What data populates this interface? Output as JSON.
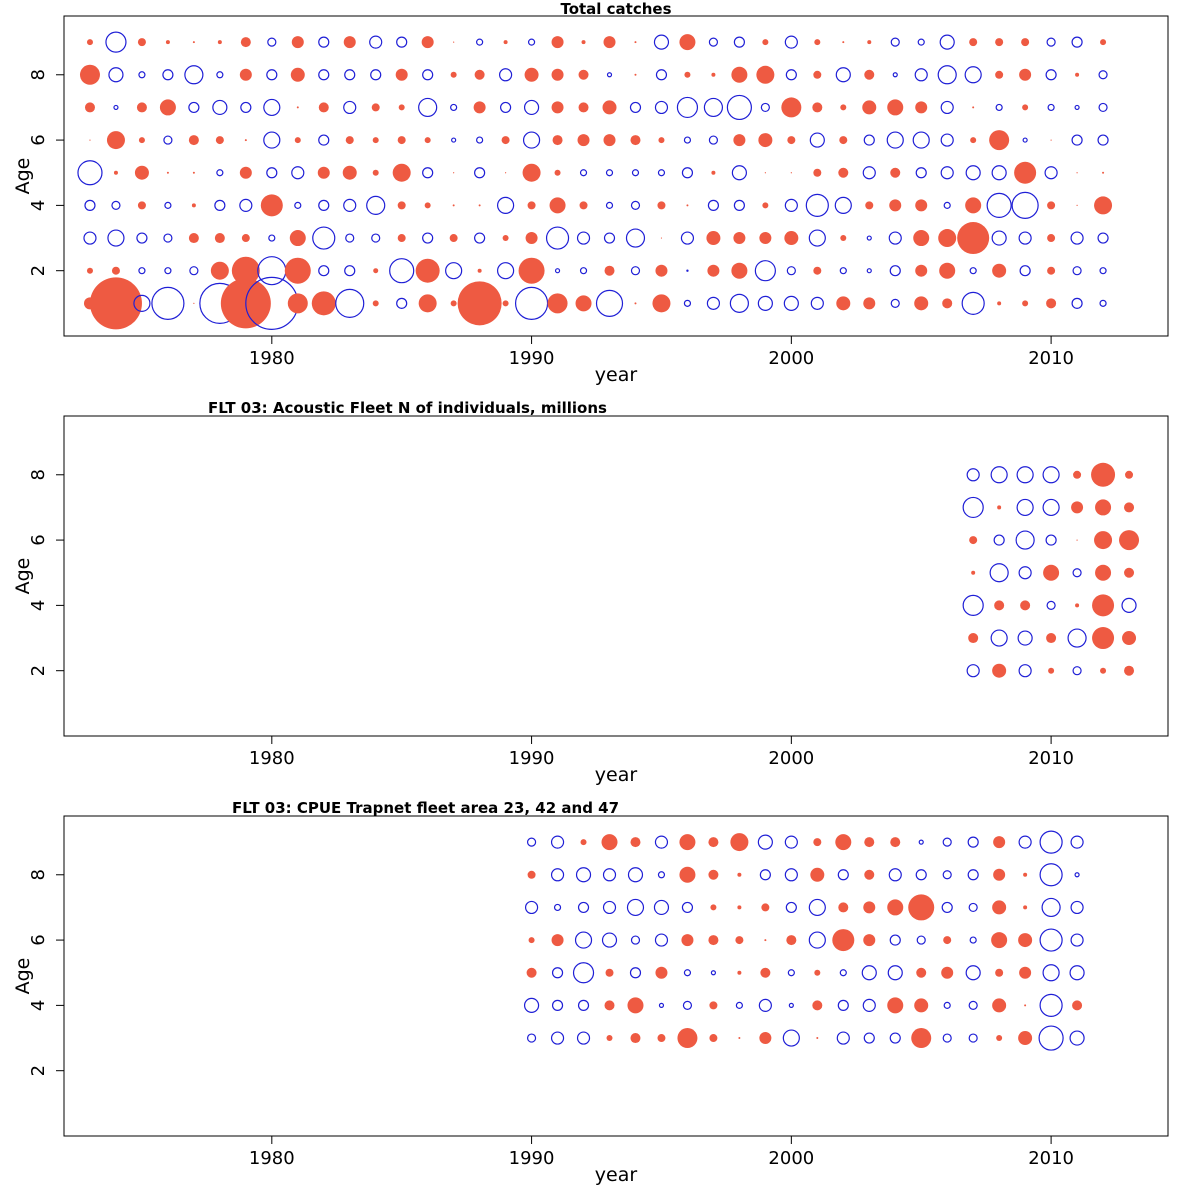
{
  "figure": {
    "colors": {
      "positive": "#EE5A42",
      "negative": "#1F1FD6"
    }
  },
  "chart_data": [
    {
      "type": "scatter",
      "subtype": "bubble-residuals",
      "title": "Total catches",
      "xlabel": "year",
      "ylabel": "Age",
      "xlim": [
        1972,
        2014.5
      ],
      "ylim": [
        0,
        9.8
      ],
      "xticks": [
        1980,
        1990,
        2000,
        2010
      ],
      "yticks": [
        2,
        4,
        6,
        8
      ],
      "x_start": 1973,
      "ages": [
        1,
        2,
        3,
        4,
        5,
        6,
        7,
        8,
        9
      ],
      "residuals": [
        [
          0.6,
          2.6,
          -0.8,
          -1.6,
          0.05,
          -2.0,
          2.5,
          -2.6,
          1.0,
          1.2,
          -1.4,
          0.3,
          -0.5,
          0.9,
          0.3,
          2.2,
          0.3,
          -1.6,
          1.0,
          0.8,
          -1.3,
          0.1,
          0.9,
          -0.3,
          -0.6,
          -0.9,
          -0.7,
          -0.7,
          -0.6,
          0.7,
          0.6,
          -0.4,
          0.7,
          0.5,
          -1.1,
          0.2,
          0.3,
          0.5,
          -0.5,
          -0.3
        ],
        [
          0.3,
          0.4,
          -0.3,
          -0.3,
          -0.4,
          0.9,
          1.4,
          -1.4,
          1.3,
          -0.5,
          -0.5,
          0.25,
          -1.2,
          1.2,
          -0.8,
          0.2,
          -0.8,
          1.3,
          -0.2,
          -0.3,
          0.5,
          -0.4,
          0.6,
          -0.05,
          0.6,
          0.8,
          -1.0,
          -0.4,
          0.4,
          -0.3,
          -0.2,
          -0.5,
          0.6,
          0.8,
          -0.3,
          0.7,
          -0.5,
          0.4,
          -0.4,
          -0.3
        ],
        [
          -0.6,
          -0.8,
          -0.5,
          -0.4,
          0.5,
          0.5,
          0.4,
          -0.3,
          0.8,
          -1.1,
          -0.4,
          -0.4,
          0.4,
          -0.5,
          0.4,
          -0.5,
          0.3,
          0.6,
          -1.1,
          -0.6,
          -0.5,
          -0.9,
          0.05,
          -0.6,
          0.7,
          0.6,
          0.6,
          0.7,
          -0.8,
          0.3,
          -0.2,
          -0.6,
          0.8,
          0.9,
          1.6,
          -0.7,
          -0.6,
          0.4,
          -0.6,
          -0.5
        ],
        [
          -0.5,
          -0.4,
          0.4,
          -0.3,
          0.2,
          -0.5,
          -0.6,
          1.1,
          -0.3,
          -0.5,
          -0.6,
          -0.9,
          0.4,
          0.3,
          0.1,
          0.1,
          -0.8,
          0.4,
          0.8,
          0.4,
          -0.3,
          -0.4,
          0.4,
          0.1,
          -0.5,
          -0.5,
          0.3,
          -0.6,
          -1.1,
          -0.8,
          0.4,
          0.6,
          0.6,
          -0.3,
          0.8,
          -1.2,
          -1.3,
          0.4,
          0.05,
          0.9
        ],
        [
          -1.2,
          0.2,
          0.7,
          0.1,
          0.1,
          -0.3,
          0.6,
          -0.5,
          -0.6,
          0.6,
          0.7,
          0.3,
          0.9,
          -0.5,
          0.05,
          -0.5,
          0.05,
          0.9,
          0.3,
          -0.3,
          -0.3,
          -0.3,
          -0.3,
          -0.5,
          0.2,
          -0.7,
          0.05,
          0.05,
          0.4,
          0.5,
          -0.6,
          0.5,
          -0.5,
          -0.6,
          -0.7,
          -0.7,
          1.1,
          -0.6,
          0.05,
          0.1
        ],
        [
          0.05,
          0.9,
          0.3,
          -0.4,
          0.5,
          0.4,
          0.1,
          -0.8,
          0.3,
          -0.5,
          0.4,
          0.3,
          0.4,
          0.3,
          -0.2,
          -0.3,
          0.4,
          -0.8,
          0.5,
          0.6,
          0.6,
          0.5,
          0.3,
          -0.3,
          -0.4,
          0.6,
          0.7,
          0.4,
          -0.7,
          0.4,
          -0.5,
          -0.8,
          -0.8,
          -0.6,
          0.3,
          1.0,
          -0.2,
          0.05,
          -0.5,
          -0.5
        ],
        [
          0.5,
          -0.2,
          0.5,
          0.8,
          -0.5,
          -0.7,
          -0.5,
          -0.8,
          0.1,
          0.5,
          -0.6,
          0.4,
          0.3,
          -0.9,
          -0.3,
          0.6,
          -0.5,
          -0.7,
          0.6,
          0.5,
          0.7,
          -0.5,
          -0.6,
          -1.0,
          -0.9,
          -1.2,
          -0.4,
          1.0,
          0.5,
          0.3,
          0.7,
          0.8,
          0.6,
          -0.6,
          0.1,
          -0.3,
          0.3,
          -0.3,
          -0.2,
          -0.4
        ],
        [
          1.0,
          -0.7,
          -0.3,
          -0.5,
          -0.9,
          -0.3,
          0.6,
          -0.5,
          0.7,
          -0.5,
          -0.5,
          -0.5,
          0.6,
          -0.5,
          0.3,
          0.5,
          -0.6,
          0.7,
          0.6,
          0.5,
          -0.2,
          0.1,
          -0.5,
          0.3,
          0.2,
          0.8,
          0.9,
          -0.5,
          0.4,
          -0.7,
          0.5,
          -0.2,
          -0.6,
          -0.9,
          -0.8,
          0.4,
          0.6,
          -0.5,
          0.2,
          -0.4
        ],
        [
          0.3,
          -1.0,
          0.4,
          0.2,
          0.1,
          0.2,
          0.5,
          -0.4,
          0.6,
          -0.5,
          0.6,
          -0.6,
          -0.5,
          0.6,
          0.05,
          -0.3,
          0.2,
          -0.3,
          0.6,
          0.2,
          0.6,
          0.1,
          -0.7,
          0.8,
          -0.4,
          -0.5,
          0.3,
          -0.6,
          0.3,
          0.1,
          0.2,
          -0.4,
          -0.3,
          -0.7,
          0.4,
          0.4,
          0.4,
          -0.4,
          -0.5,
          0.3
        ]
      ]
    },
    {
      "type": "scatter",
      "subtype": "bubble-residuals",
      "title": "FLT 03: Acoustic Fleet   N of individuals, millions",
      "xlabel": "year",
      "ylabel": "Age",
      "xlim": [
        1972,
        2014.5
      ],
      "ylim": [
        0,
        9.8
      ],
      "xticks": [
        1980,
        1990,
        2000,
        2010
      ],
      "yticks": [
        2,
        4,
        6,
        8
      ],
      "x_start": 2007,
      "ages": [
        2,
        3,
        4,
        5,
        6,
        7,
        8
      ],
      "residuals": [
        [
          -0.6,
          0.7,
          -0.6,
          0.3,
          -0.4,
          0.3,
          0.5
        ],
        [
          0.5,
          -0.8,
          -0.7,
          0.5,
          -0.9,
          1.1,
          0.7
        ],
        [
          -1.0,
          0.5,
          0.5,
          -0.4,
          0.2,
          1.1,
          -0.7
        ],
        [
          0.2,
          -0.9,
          -0.6,
          0.8,
          -0.4,
          0.8,
          0.5
        ],
        [
          0.4,
          -0.5,
          -0.9,
          -0.5,
          0.05,
          0.9,
          1.0
        ],
        [
          -1.0,
          0.2,
          -0.8,
          -0.8,
          0.6,
          0.8,
          0.5
        ],
        [
          -0.6,
          -0.8,
          -0.8,
          -0.8,
          0.4,
          1.2,
          0.4
        ]
      ]
    },
    {
      "type": "scatter",
      "subtype": "bubble-residuals",
      "title": "FLT 03: CPUE Trapnet fleet area 23, 42 and 47",
      "xlabel": "year",
      "ylabel": "Age",
      "xlim": [
        1972,
        2014.5
      ],
      "ylim": [
        0,
        9.8
      ],
      "xticks": [
        1980,
        1990,
        2000,
        2010
      ],
      "yticks": [
        2,
        4,
        6,
        8
      ],
      "x_start": 1990,
      "ages": [
        3,
        4,
        5,
        6,
        7,
        8,
        9
      ],
      "residuals": [
        [
          -0.4,
          -0.6,
          -0.6,
          0.3,
          0.5,
          0.4,
          1.0,
          0.4,
          0.1,
          0.6,
          -0.8,
          0.1,
          -0.6,
          -0.5,
          -0.5,
          1.0,
          -0.4,
          -0.4,
          0.3,
          0.7,
          -1.2,
          -0.7
        ],
        [
          -0.7,
          -0.5,
          -0.5,
          0.5,
          0.8,
          -0.2,
          -0.4,
          0.4,
          -0.3,
          -0.6,
          -0.2,
          0.5,
          -0.5,
          -0.6,
          0.8,
          0.7,
          -0.3,
          -0.4,
          0.7,
          0.1,
          -1.1,
          0.5
        ],
        [
          0.5,
          -0.5,
          -1.0,
          0.4,
          -0.5,
          0.6,
          -0.3,
          -0.2,
          0.2,
          0.5,
          -0.3,
          0.3,
          -0.3,
          -0.7,
          -0.7,
          0.5,
          0.6,
          -0.7,
          0.4,
          0.6,
          -0.8,
          -0.7
        ],
        [
          0.3,
          0.6,
          -0.8,
          -0.7,
          -0.4,
          -0.6,
          0.6,
          0.5,
          0.4,
          0.1,
          0.5,
          -0.8,
          1.1,
          0.6,
          -0.5,
          -0.4,
          0.4,
          -0.3,
          0.8,
          0.7,
          -1.1,
          -0.6
        ],
        [
          -0.6,
          -0.3,
          -0.5,
          -0.6,
          -0.8,
          -0.7,
          -0.5,
          0.3,
          0.2,
          0.4,
          -0.5,
          -0.8,
          0.5,
          0.6,
          0.8,
          1.3,
          -0.5,
          -0.4,
          0.7,
          0.2,
          -0.9,
          -0.6
        ],
        [
          0.4,
          -0.6,
          -0.7,
          -0.6,
          -0.7,
          -0.3,
          0.8,
          0.5,
          0.2,
          -0.5,
          -0.6,
          0.7,
          -0.5,
          0.5,
          -0.6,
          -0.5,
          -0.4,
          -0.5,
          0.6,
          0.2,
          -1.1,
          -0.2
        ],
        [
          -0.4,
          -0.6,
          0.3,
          0.8,
          0.5,
          -0.6,
          0.8,
          0.5,
          0.9,
          -0.7,
          -0.6,
          0.4,
          0.8,
          0.5,
          0.5,
          -0.2,
          -0.4,
          -0.5,
          0.6,
          -0.6,
          -1.1,
          -0.6
        ]
      ]
    }
  ]
}
